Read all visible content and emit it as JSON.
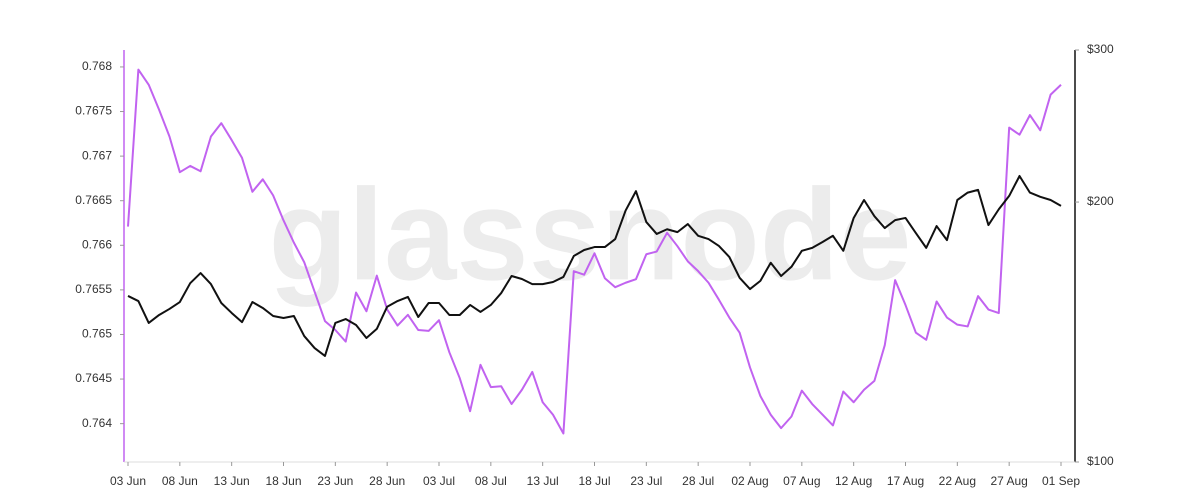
{
  "watermark": "glassnode",
  "chart_data": {
    "type": "line",
    "categories": [
      "03 Jun",
      null,
      null,
      null,
      null,
      "08 Jun",
      null,
      null,
      null,
      null,
      "13 Jun",
      null,
      null,
      null,
      null,
      "18 Jun",
      null,
      null,
      null,
      null,
      "23 Jun",
      null,
      null,
      null,
      null,
      "28 Jun",
      null,
      null,
      null,
      null,
      "03 Jul",
      null,
      null,
      null,
      null,
      "08 Jul",
      null,
      null,
      null,
      null,
      "13 Jul",
      null,
      null,
      null,
      null,
      "18 Jul",
      null,
      null,
      null,
      null,
      "23 Jul",
      null,
      null,
      null,
      null,
      "28 Jul",
      null,
      null,
      null,
      null,
      "02 Aug",
      null,
      null,
      null,
      null,
      "07 Aug",
      null,
      null,
      null,
      null,
      "12 Aug",
      null,
      null,
      null,
      null,
      "17 Aug",
      null,
      null,
      null,
      null,
      "22 Aug",
      null,
      null,
      null,
      null,
      "27 Aug",
      null,
      null,
      null,
      null,
      "01 Sep"
    ],
    "series": [
      {
        "color": "#c163f0",
        "axis": "y",
        "values": [
          0.76621,
          0.76797,
          0.7678,
          0.76752,
          0.76722,
          0.76682,
          0.76689,
          0.76683,
          0.76722,
          0.76737,
          0.76718,
          0.76698,
          0.7666,
          0.76674,
          0.76656,
          0.76628,
          0.76603,
          0.76581,
          0.76548,
          0.76515,
          0.76505,
          0.76492,
          0.76547,
          0.76526,
          0.76566,
          0.76528,
          0.7651,
          0.76522,
          0.76505,
          0.76504,
          0.76516,
          0.7648,
          0.76451,
          0.76414,
          0.76466,
          0.76441,
          0.76442,
          0.76422,
          0.76438,
          0.76458,
          0.76424,
          0.7641,
          0.76389,
          0.76571,
          0.76567,
          0.76591,
          0.76563,
          0.76553,
          0.76558,
          0.76562,
          0.7659,
          0.76593,
          0.76614,
          0.76599,
          0.76582,
          0.76571,
          0.76558,
          0.76539,
          0.76519,
          0.76502,
          0.76463,
          0.76431,
          0.7641,
          0.76395,
          0.76408,
          0.76437,
          0.76422,
          0.7641,
          0.76398,
          0.76436,
          0.76424,
          0.76438,
          0.76448,
          0.76488,
          0.76561,
          0.76533,
          0.76502,
          0.76494,
          0.76537,
          0.76519,
          0.76511,
          0.76509,
          0.76543,
          0.76528,
          0.76524,
          0.76732,
          0.76724,
          0.76746,
          0.76729,
          0.76769,
          0.7678
        ]
      },
      {
        "color": "#111111",
        "axis": "y2",
        "values": [
          155.7,
          153.6,
          144.9,
          148.0,
          150.4,
          153.2,
          161.1,
          165.5,
          160.7,
          152.8,
          148.8,
          145.2,
          153.2,
          150.8,
          147.6,
          146.8,
          147.6,
          139.9,
          135.5,
          132.7,
          144.9,
          146.4,
          144.1,
          139.2,
          142.6,
          151.3,
          153.6,
          155.3,
          147.2,
          152.8,
          152.8,
          148.0,
          148.0,
          152.0,
          149.2,
          152.0,
          156.9,
          164.2,
          162.9,
          160.7,
          160.7,
          161.6,
          163.8,
          173.2,
          176.0,
          177.4,
          177.4,
          181.2,
          195.5,
          205.9,
          189.6,
          183.7,
          186.0,
          184.6,
          188.6,
          182.8,
          181.2,
          177.9,
          172.8,
          163.4,
          158.6,
          162.1,
          170.1,
          164.2,
          168.3,
          175.6,
          177.0,
          179.8,
          182.8,
          175.6,
          191.7,
          201.1,
          192.6,
          186.6,
          190.6,
          191.7,
          184.1,
          177.0,
          187.6,
          180.7,
          201.1,
          205.1,
          206.6,
          188.1,
          196.2,
          203.3,
          214.4,
          205.1,
          202.8,
          201.1,
          198.0
        ]
      }
    ],
    "ylim": [
      0.76357,
      0.76819
    ],
    "yticks": [
      0.764,
      0.7645,
      0.765,
      0.7655,
      0.766,
      0.7665,
      0.767,
      0.7675,
      0.768
    ],
    "y2lim": [
      100,
      300
    ],
    "y2ticks": [
      {
        "value": 100,
        "label": "$100"
      },
      {
        "value": 200,
        "label": "$200"
      },
      {
        "value": 300,
        "label": "$300"
      }
    ],
    "y2log": true,
    "grid": false
  }
}
